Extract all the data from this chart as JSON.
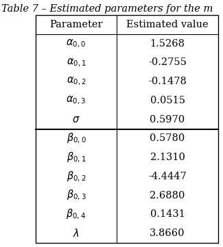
{
  "title": "Table 7 – Estimated parameters for the m",
  "col_headers": [
    "Parameter",
    "Estimated value"
  ],
  "group1_params": [
    "$\\alpha_{0,0}$",
    "$\\alpha_{0,1}$",
    "$\\alpha_{0,2}$",
    "$\\alpha_{0,3}$",
    "$\\sigma$"
  ],
  "group1_values": [
    "1.5268",
    "-0.2755",
    "-0.1478",
    "0.0515",
    "0.5970"
  ],
  "group2_params": [
    "$\\beta_{0,0}$",
    "$\\beta_{0,1}$",
    "$\\beta_{0,2}$",
    "$\\beta_{0,3}$",
    "$\\beta_{0,4}$",
    "$\\lambda$"
  ],
  "group2_values": [
    "0.5780",
    "2.1310",
    "-4.4447",
    "2.6880",
    "0.1431",
    "3.8660"
  ],
  "bg_color": "#ffffff",
  "text_color": "#000000",
  "font_size": 10.5,
  "title_font_size": 10.5
}
